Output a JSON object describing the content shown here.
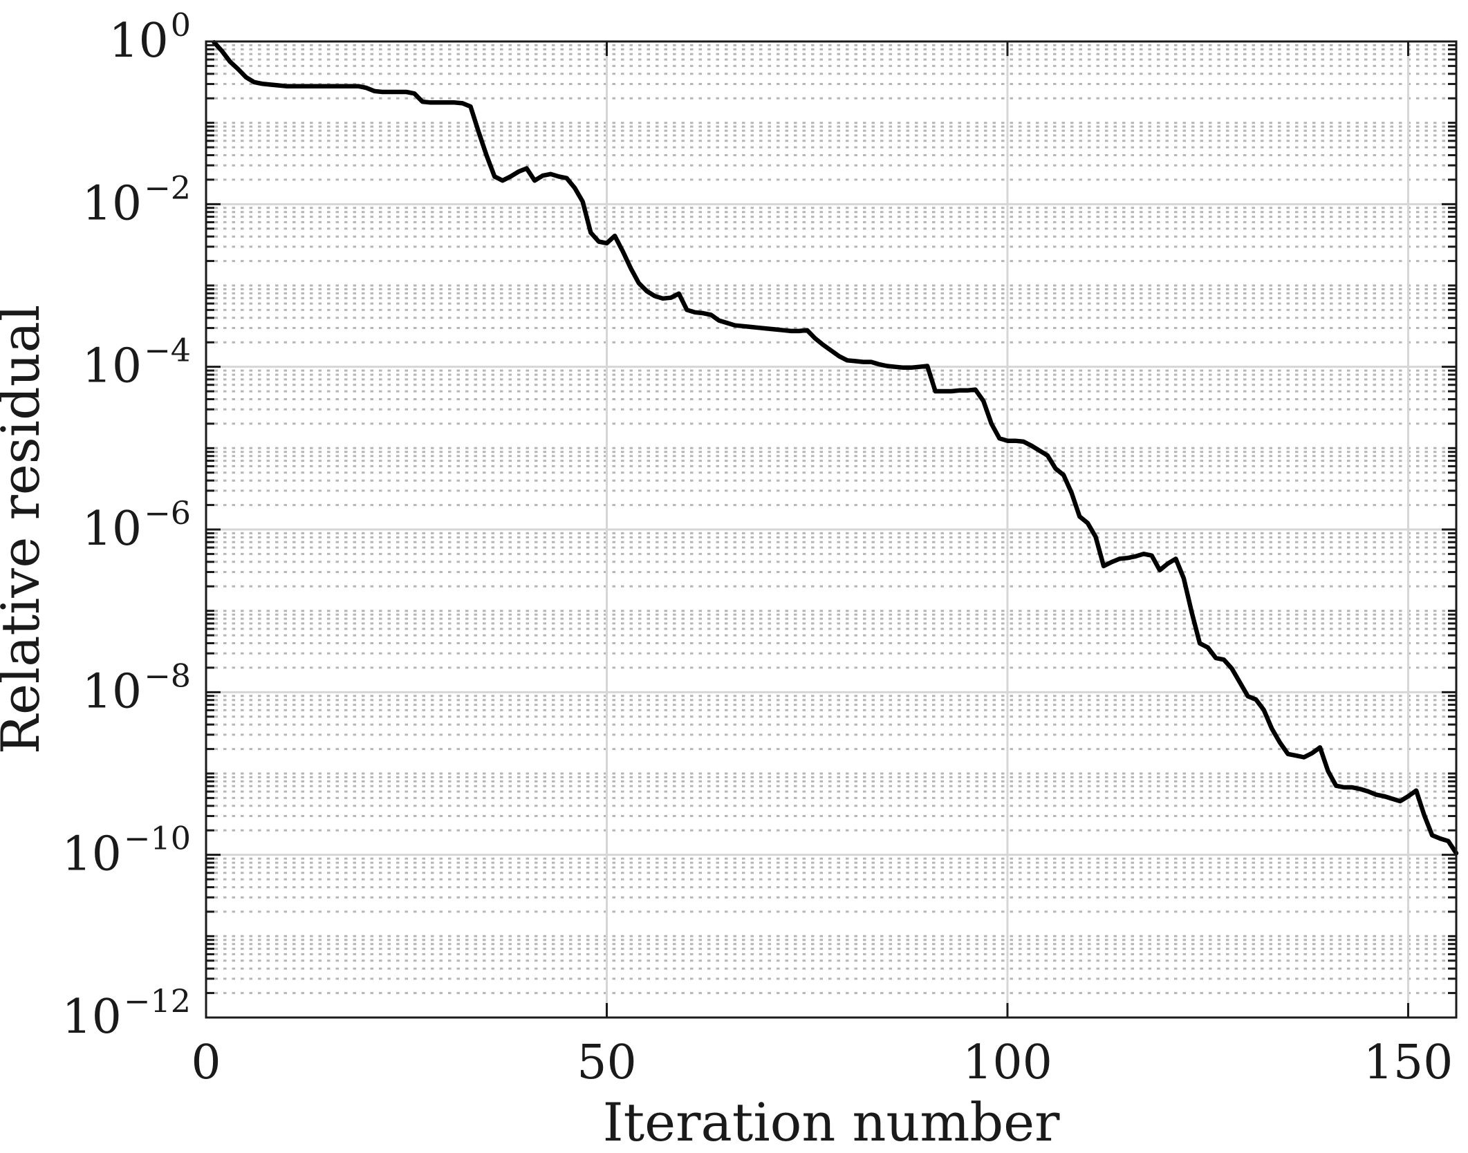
{
  "chart_data": {
    "type": "line",
    "title": "",
    "xlabel": "Iteration number",
    "ylabel": "Relative residual",
    "xlim": [
      0,
      156
    ],
    "ylim_log10": [
      -12,
      0
    ],
    "x_ticks": [
      0,
      50,
      100,
      150
    ],
    "y_tick_exponents": [
      0,
      -2,
      -4,
      -6,
      -8,
      -10,
      -12
    ],
    "legend_position": "none",
    "grid": {
      "major": "solid",
      "minor": "dotted-log"
    },
    "colors": {
      "line": "#000000",
      "major_grid": "#d6d6d6",
      "minor_grid": "#b6b6b6",
      "axes": "#1a1a1a",
      "background": "#ffffff"
    },
    "series": [
      {
        "name": "relative-residual",
        "x_start": 1,
        "x_step": 1,
        "log10_values": [
          -0.01,
          -0.12,
          -0.25,
          -0.34,
          -0.44,
          -0.5,
          -0.52,
          -0.53,
          -0.54,
          -0.55,
          -0.55,
          -0.55,
          -0.55,
          -0.55,
          -0.55,
          -0.55,
          -0.55,
          -0.55,
          -0.55,
          -0.57,
          -0.61,
          -0.62,
          -0.62,
          -0.62,
          -0.62,
          -0.64,
          -0.74,
          -0.75,
          -0.75,
          -0.75,
          -0.75,
          -0.76,
          -0.8,
          -1.11,
          -1.4,
          -1.66,
          -1.71,
          -1.66,
          -1.6,
          -1.56,
          -1.71,
          -1.65,
          -1.63,
          -1.66,
          -1.68,
          -1.8,
          -1.97,
          -2.35,
          -2.46,
          -2.48,
          -2.39,
          -2.58,
          -2.79,
          -2.97,
          -3.07,
          -3.13,
          -3.16,
          -3.15,
          -3.1,
          -3.3,
          -3.33,
          -3.34,
          -3.36,
          -3.43,
          -3.46,
          -3.49,
          -3.5,
          -3.51,
          -3.52,
          -3.53,
          -3.54,
          -3.55,
          -3.56,
          -3.56,
          -3.55,
          -3.65,
          -3.73,
          -3.8,
          -3.87,
          -3.92,
          -3.93,
          -3.94,
          -3.94,
          -3.97,
          -3.99,
          -4.0,
          -4.01,
          -4.01,
          -4.0,
          -3.99,
          -4.3,
          -4.3,
          -4.3,
          -4.29,
          -4.29,
          -4.28,
          -4.42,
          -4.7,
          -4.88,
          -4.91,
          -4.91,
          -4.92,
          -4.97,
          -5.03,
          -5.09,
          -5.25,
          -5.33,
          -5.55,
          -5.84,
          -5.92,
          -6.09,
          -6.45,
          -6.4,
          -6.36,
          -6.35,
          -6.33,
          -6.3,
          -6.32,
          -6.5,
          -6.42,
          -6.36,
          -6.6,
          -7.02,
          -7.4,
          -7.45,
          -7.58,
          -7.6,
          -7.71,
          -7.88,
          -8.05,
          -8.09,
          -8.22,
          -8.45,
          -8.62,
          -8.76,
          -8.78,
          -8.8,
          -8.75,
          -8.68,
          -8.97,
          -9.15,
          -9.17,
          -9.17,
          -9.19,
          -9.22,
          -9.26,
          -9.28,
          -9.31,
          -9.34,
          -9.28,
          -9.21,
          -9.51,
          -9.76,
          -9.8,
          -9.83,
          -9.98
        ]
      }
    ]
  }
}
